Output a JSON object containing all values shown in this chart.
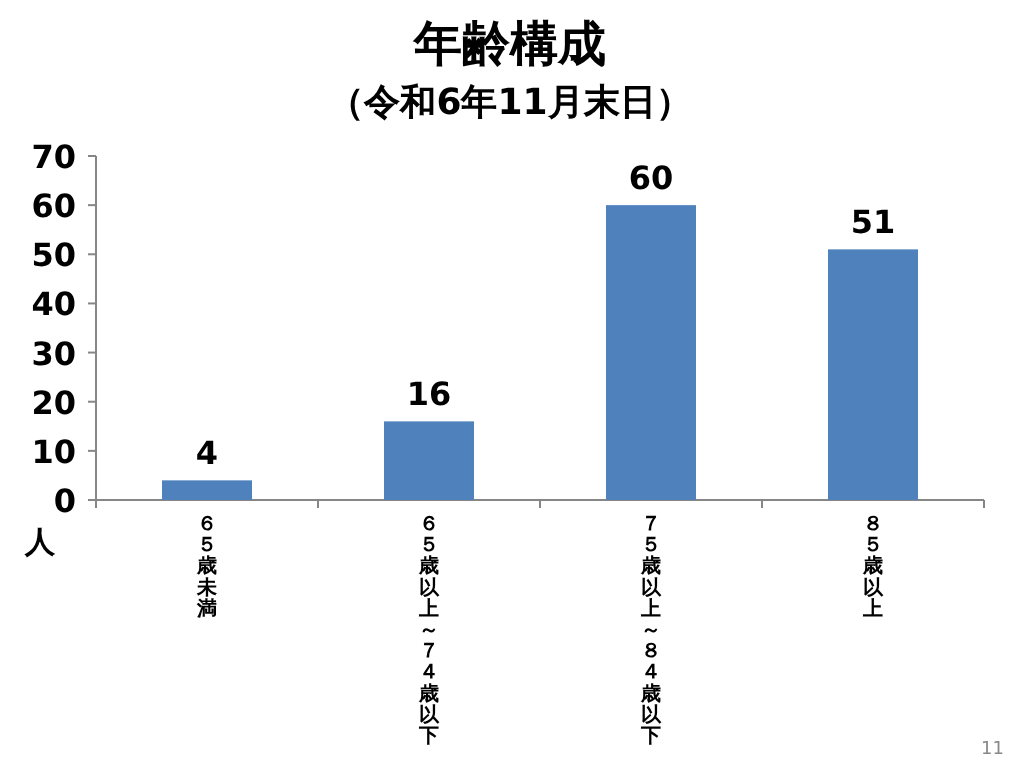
{
  "chart_data": {
    "type": "bar",
    "title": "年齢構成",
    "subtitle": "（令和6年11月末日）",
    "ylabel": "人",
    "categories": [
      "６５歳未満",
      "６５歳以上～７４歳以下",
      "７５歳以上～８４歳以下",
      "８５歳以上"
    ],
    "values": [
      4,
      16,
      60,
      51
    ],
    "color": "#4f81bd",
    "ylim": [
      0,
      70
    ],
    "yticks": [
      0,
      10,
      20,
      30,
      40,
      50,
      60,
      70
    ],
    "data_labels": true,
    "grid": false,
    "annotations": [
      "11"
    ]
  }
}
